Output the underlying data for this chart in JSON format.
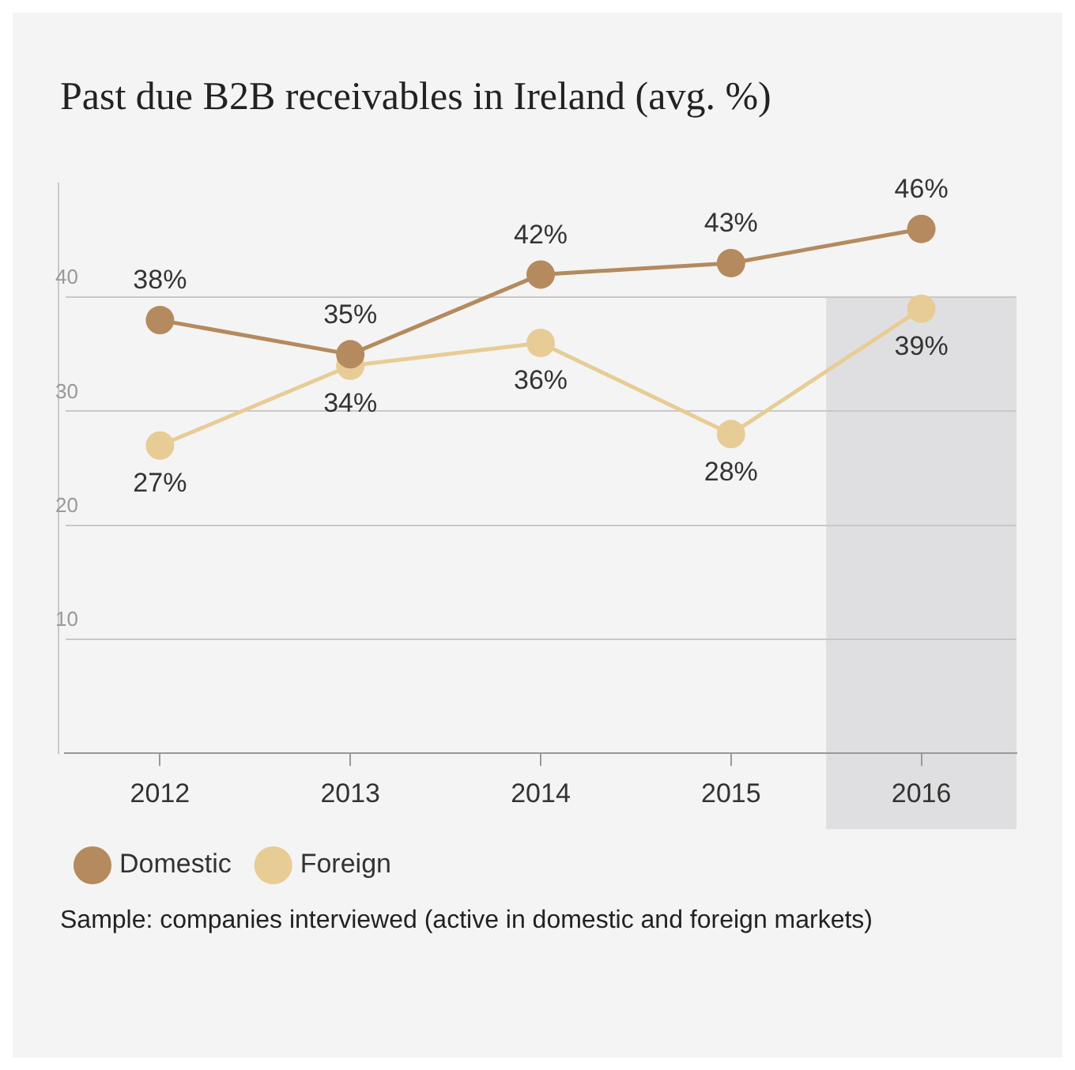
{
  "chart_data": {
    "type": "line",
    "title": "Past due B2B receivables in Ireland (avg. %)",
    "categories": [
      "2012",
      "2013",
      "2014",
      "2015",
      "2016"
    ],
    "series": [
      {
        "name": "Domestic",
        "color": "#b48a5e",
        "values": [
          38,
          35,
          42,
          43,
          46
        ],
        "value_labels": [
          "38%",
          "35%",
          "42%",
          "43%",
          "46%"
        ]
      },
      {
        "name": "Foreign",
        "color": "#e8cc96",
        "values": [
          27,
          34,
          36,
          28,
          39
        ],
        "value_labels": [
          "27%",
          "34%",
          "36%",
          "28%",
          "39%"
        ]
      }
    ],
    "ylim": [
      0,
      50
    ],
    "yticks": [
      {
        "value": 0,
        "label": null
      },
      10,
      20,
      30,
      40
    ],
    "grid": "y",
    "legend": "bottom left",
    "marker": "circle",
    "line_style": "solid",
    "bands": [
      {
        "axis": "x",
        "from": "2016",
        "to": "2016",
        "color": "#dfdfe1"
      }
    ],
    "annotations": [
      "Sample: companies interviewed (active in domestic and foreign markets)"
    ]
  }
}
